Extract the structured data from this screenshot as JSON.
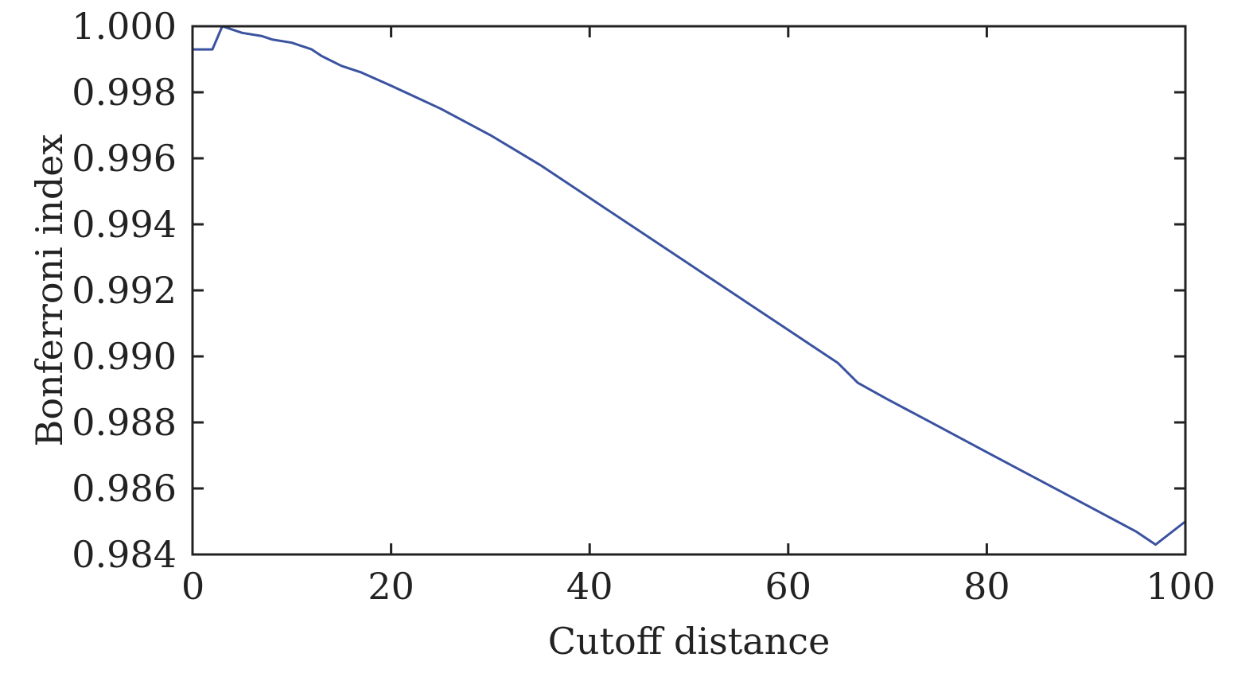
{
  "chart_data": {
    "type": "line",
    "title": "",
    "xlabel": "Cutoff distance",
    "ylabel": "Bonferroni index",
    "xlim": [
      0,
      100
    ],
    "ylim": [
      0.984,
      1.0
    ],
    "xticks": [
      0,
      20,
      40,
      60,
      80,
      100
    ],
    "xtick_labels": [
      "0",
      "20",
      "40",
      "60",
      "80",
      "100"
    ],
    "yticks": [
      0.984,
      0.986,
      0.988,
      0.99,
      0.992,
      0.994,
      0.996,
      0.998,
      1.0
    ],
    "ytick_labels": [
      "0.984",
      "0.986",
      "0.988",
      "0.990",
      "0.992",
      "0.994",
      "0.996",
      "0.998",
      "1.000"
    ],
    "grid": false,
    "series": [
      {
        "color": "#3a52a0",
        "x": [
          0,
          2,
          3,
          5,
          7,
          8,
          10,
          12,
          13,
          15,
          17,
          20,
          25,
          30,
          35,
          40,
          45,
          50,
          55,
          60,
          65,
          66,
          67,
          70,
          75,
          80,
          85,
          90,
          95,
          96,
          97,
          100
        ],
        "y": [
          0.9993,
          0.9993,
          1.0,
          0.9998,
          0.9997,
          0.9996,
          0.9995,
          0.9993,
          0.9991,
          0.9988,
          0.9986,
          0.9982,
          0.9975,
          0.9967,
          0.9958,
          0.9948,
          0.9938,
          0.9928,
          0.9918,
          0.9908,
          0.9898,
          0.9895,
          0.9892,
          0.9887,
          0.9879,
          0.9871,
          0.9863,
          0.9855,
          0.9847,
          0.9845,
          0.9843,
          0.985
        ]
      }
    ]
  }
}
